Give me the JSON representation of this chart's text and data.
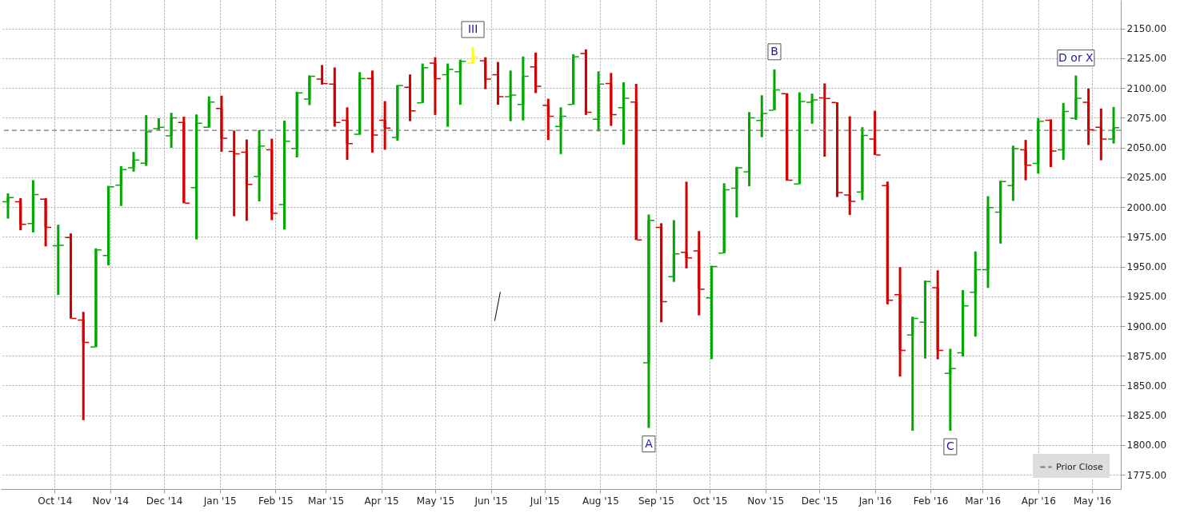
{
  "chart_data": {
    "type": "candlestick",
    "x": [
      "2014-09-05",
      "2014-09-12",
      "2014-09-19",
      "2014-09-26",
      "2014-10-03",
      "2014-10-10",
      "2014-10-17",
      "2014-10-24",
      "2014-10-31",
      "2014-11-07",
      "2014-11-14",
      "2014-11-21",
      "2014-11-28",
      "2014-12-05",
      "2014-12-12",
      "2014-12-19",
      "2014-12-26",
      "2015-01-02",
      "2015-01-09",
      "2015-01-16",
      "2015-01-23",
      "2015-01-30",
      "2015-02-06",
      "2015-02-13",
      "2015-02-20",
      "2015-02-27",
      "2015-03-06",
      "2015-03-13",
      "2015-03-20",
      "2015-03-27",
      "2015-04-03",
      "2015-04-10",
      "2015-04-17",
      "2015-04-24",
      "2015-05-01",
      "2015-05-08",
      "2015-05-15",
      "2015-05-22",
      "2015-05-29",
      "2015-06-05",
      "2015-06-12",
      "2015-06-19",
      "2015-06-26",
      "2015-07-03",
      "2015-07-10",
      "2015-07-17",
      "2015-07-24",
      "2015-07-31",
      "2015-08-07",
      "2015-08-14",
      "2015-08-21",
      "2015-08-28",
      "2015-09-04",
      "2015-09-11",
      "2015-09-18",
      "2015-09-25",
      "2015-10-02",
      "2015-10-09",
      "2015-10-16",
      "2015-10-23",
      "2015-10-30",
      "2015-11-06",
      "2015-11-13",
      "2015-11-20",
      "2015-11-27",
      "2015-12-04",
      "2015-12-11",
      "2015-12-18",
      "2015-12-25",
      "2016-01-01",
      "2016-01-08",
      "2016-01-15",
      "2016-01-22",
      "2016-01-29",
      "2016-02-05",
      "2016-02-12",
      "2016-02-19",
      "2016-02-26",
      "2016-03-04",
      "2016-03-11",
      "2016-03-18",
      "2016-03-25",
      "2016-04-01",
      "2016-04-08",
      "2016-04-15",
      "2016-04-22",
      "2016-04-29",
      "2016-05-06",
      "2016-05-13"
    ],
    "ohlc": [
      [
        2004.4,
        2011.4,
        1990.3,
        2007.9
      ],
      [
        2004.4,
        2007.5,
        1980.5,
        1985.5
      ],
      [
        1986.2,
        2022.6,
        1978.7,
        2010.5
      ],
      [
        2006.6,
        2007.5,
        1966.9,
        1982.9
      ],
      [
        1967.5,
        1985.1,
        1926.1,
        1967.8
      ],
      [
        1974.3,
        1977.8,
        1906.4,
        1906.4
      ],
      [
        1905.1,
        1911.9,
        1820.9,
        1886.2
      ],
      [
        1882.3,
        1965.3,
        1882.3,
        1963.9
      ],
      [
        1959.3,
        2017.8,
        1950.9,
        2017.1
      ],
      [
        2018.4,
        2034.4,
        2000.9,
        2031.4
      ],
      [
        2032.9,
        2046.3,
        2029.8,
        2039.5
      ],
      [
        2036.8,
        2077.2,
        2034.6,
        2063.2
      ],
      [
        2065.8,
        2074.6,
        2064.7,
        2067.1
      ],
      [
        2059.9,
        2079.2,
        2049.8,
        2075.0
      ],
      [
        2071.1,
        2075.9,
        2003.3,
        2003.3
      ],
      [
        2016.4,
        2077.8,
        1972.8,
        2070.4
      ],
      [
        2067.1,
        2093.0,
        2066.7,
        2088.2
      ],
      [
        2082.9,
        2093.6,
        2046.5,
        2057.9
      ],
      [
        2046.7,
        2064.3,
        1992.3,
        2044.7
      ],
      [
        2046.1,
        2056.8,
        1988.4,
        2019.1
      ],
      [
        2025.7,
        2064.7,
        2004.8,
        2051.3
      ],
      [
        2048.0,
        2057.4,
        1989.0,
        1994.7
      ],
      [
        2002.0,
        2072.6,
        1981.1,
        2055.3
      ],
      [
        2049.3,
        2096.9,
        2041.7,
        2096.0
      ],
      [
        2090.8,
        2110.7,
        2085.7,
        2109.9
      ],
      [
        2107.5,
        2119.3,
        2102.8,
        2103.9
      ],
      [
        2103.3,
        2117.3,
        2067.5,
        2071.1
      ],
      [
        2073.0,
        2083.8,
        2039.7,
        2053.3
      ],
      [
        2061.2,
        2113.4,
        2060.7,
        2108.1
      ],
      [
        2108.1,
        2114.7,
        2045.8,
        2060.5
      ],
      [
        2073.0,
        2089.0,
        2048.2,
        2066.4
      ],
      [
        2058.5,
        2102.6,
        2055.7,
        2102.2
      ],
      [
        2100.6,
        2111.4,
        2072.2,
        2080.9
      ],
      [
        2087.5,
        2120.6,
        2087.5,
        2117.1
      ],
      [
        2121.0,
        2125.9,
        2077.4,
        2107.9
      ],
      [
        2111.2,
        2120.6,
        2067.5,
        2115.8
      ],
      [
        2113.8,
        2123.9,
        2086.0,
        2122.4
      ],
      [
        2121.0,
        2134.4,
        2120.4,
        2125.9
      ],
      [
        2123.0,
        2125.9,
        2099.1,
        2107.5
      ],
      [
        2111.2,
        2121.9,
        2086.0,
        2092.8
      ],
      [
        2092.8,
        2114.7,
        2072.2,
        2094.1
      ],
      [
        2086.2,
        2126.5,
        2072.8,
        2109.9
      ],
      [
        2117.8,
        2129.8,
        2095.8,
        2101.5
      ],
      [
        2085.5,
        2091.0,
        2056.4,
        2076.3
      ],
      [
        2067.8,
        2083.8,
        2044.5,
        2076.3
      ],
      [
        2086.2,
        2128.5,
        2086.2,
        2126.3
      ],
      [
        2129.0,
        2132.5,
        2077.4,
        2079.6
      ],
      [
        2073.7,
        2114.0,
        2063.6,
        2103.3
      ],
      [
        2103.9,
        2112.7,
        2068.2,
        2077.6
      ],
      [
        2083.5,
        2104.8,
        2052.4,
        2091.4
      ],
      [
        2088.2,
        2103.5,
        1972.4,
        1972.4
      ],
      [
        1869.1,
        1993.6,
        1814.3,
        1988.8
      ],
      [
        1982.9,
        1986.4,
        1903.1,
        1920.4
      ],
      [
        1941.5,
        1989.0,
        1937.1,
        1960.6
      ],
      [
        1961.9,
        2021.3,
        1948.5,
        1957.3
      ],
      [
        1963.2,
        1979.8,
        1909.0,
        1930.9
      ],
      [
        1923.7,
        1950.7,
        1872.2,
        1950.0
      ],
      [
        1961.2,
        2020.0,
        1961.2,
        2014.5
      ],
      [
        2015.8,
        2033.8,
        1991.2,
        2032.9
      ],
      [
        2029.6,
        2079.8,
        2017.5,
        2075.0
      ],
      [
        2072.8,
        2093.9,
        2058.7,
        2078.7
      ],
      [
        2081.4,
        2115.7,
        2081.4,
        2098.4
      ],
      [
        2095.3,
        2095.7,
        2022.1,
        2022.5
      ],
      [
        2019.3,
        2096.4,
        2019.3,
        2088.7
      ],
      [
        2088.0,
        2095.3,
        2070.0,
        2090.0
      ],
      [
        2091.8,
        2103.9,
        2042.3,
        2091.2
      ],
      [
        2087.8,
        2088.0,
        2008.4,
        2012.1
      ],
      [
        2010.2,
        2076.2,
        1993.4,
        2004.8
      ],
      [
        2012.7,
        2067.1,
        2005.9,
        2060.2
      ],
      [
        2057.1,
        2080.9,
        2043.7,
        2043.7
      ],
      [
        2018.0,
        2021.4,
        1918.2,
        1921.6
      ],
      [
        1926.4,
        1949.5,
        1857.5,
        1879.5
      ],
      [
        1892.5,
        1907.9,
        1812.0,
        1906.4
      ],
      [
        1903.2,
        1938.2,
        1872.7,
        1937.5
      ],
      [
        1932.3,
        1946.8,
        1872.0,
        1879.5
      ],
      [
        1860.2,
        1880.9,
        1812.0,
        1864.3
      ],
      [
        1877.5,
        1930.2,
        1874.5,
        1917.0
      ],
      [
        1928.4,
        1962.7,
        1891.1,
        1947.3
      ],
      [
        1947.3,
        2009.1,
        1932.0,
        1999.6
      ],
      [
        1995.7,
        2022.1,
        1969.3,
        2021.4
      ],
      [
        2018.0,
        2051.6,
        2005.2,
        2049.1
      ],
      [
        2048.0,
        2056.4,
        2022.5,
        2035.2
      ],
      [
        2036.6,
        2074.8,
        2028.2,
        2072.1
      ],
      [
        2073.0,
        2073.7,
        2033.6,
        2047.1
      ],
      [
        2048.0,
        2087.5,
        2039.6,
        2080.3
      ],
      [
        2074.6,
        2110.5,
        2073.2,
        2091.4
      ],
      [
        2088.0,
        2099.6,
        2052.1,
        2064.8
      ],
      [
        2067.1,
        2082.8,
        2039.3,
        2057.1
      ],
      [
        2057.1,
        2084.1,
        2053.4,
        2066.8
      ]
    ],
    "colors": [
      "#00a800",
      "#d40000",
      "#00a800",
      "#d40000",
      "#00a800",
      "#d40000",
      "#d40000",
      "#00a800",
      "#00a800",
      "#00a800",
      "#00a800",
      "#00a800",
      "#00a800",
      "#00a800",
      "#d40000",
      "#00a800",
      "#00a800",
      "#d40000",
      "#d40000",
      "#d40000",
      "#00a800",
      "#d40000",
      "#00a800",
      "#00a800",
      "#00a800",
      "#d40000",
      "#d40000",
      "#d40000",
      "#00a800",
      "#d40000",
      "#d40000",
      "#00a800",
      "#d40000",
      "#00a800",
      "#d40000",
      "#00a800",
      "#00a800",
      "#ffff00",
      "#d40000",
      "#d40000",
      "#00a800",
      "#00a800",
      "#d40000",
      "#d40000",
      "#00a800",
      "#00a800",
      "#d40000",
      "#00a800",
      "#d40000",
      "#00a800",
      "#d40000",
      "#00a800",
      "#d40000",
      "#00a800",
      "#d40000",
      "#d40000",
      "#00a800",
      "#00a800",
      "#00a800",
      "#00a800",
      "#00a800",
      "#00a800",
      "#d40000",
      "#00a800",
      "#00a800",
      "#d40000",
      "#d40000",
      "#d40000",
      "#00a800",
      "#d40000",
      "#d40000",
      "#d40000",
      "#00a800",
      "#00a800",
      "#d40000",
      "#00a800",
      "#00a800",
      "#00a800",
      "#00a800",
      "#00a800",
      "#00a800",
      "#d40000",
      "#00a800",
      "#d40000",
      "#00a800",
      "#00a800",
      "#d40000",
      "#d40000",
      "#00a800"
    ],
    "xlim": [
      "2014-09-01",
      "2016-05-17"
    ],
    "xticks": [
      {
        "value": "2014-10-01",
        "label": "Oct '14"
      },
      {
        "value": "2014-11-01",
        "label": "Nov '14"
      },
      {
        "value": "2014-12-01",
        "label": "Dec '14"
      },
      {
        "value": "2015-01-01",
        "label": "Jan '15"
      },
      {
        "value": "2015-02-01",
        "label": "Feb '15"
      },
      {
        "value": "2015-03-01",
        "label": "Mar '15"
      },
      {
        "value": "2015-04-01",
        "label": "Apr '15"
      },
      {
        "value": "2015-05-01",
        "label": "May '15"
      },
      {
        "value": "2015-06-01",
        "label": "Jun '15"
      },
      {
        "value": "2015-07-01",
        "label": "Jul '15"
      },
      {
        "value": "2015-08-01",
        "label": "Aug '15"
      },
      {
        "value": "2015-09-01",
        "label": "Sep '15"
      },
      {
        "value": "2015-10-01",
        "label": "Oct '15"
      },
      {
        "value": "2015-11-01",
        "label": "Nov '15"
      },
      {
        "value": "2015-12-01",
        "label": "Dec '15"
      },
      {
        "value": "2016-01-01",
        "label": "Jan '16"
      },
      {
        "value": "2016-02-01",
        "label": "Feb '16"
      },
      {
        "value": "2016-03-01",
        "label": "Mar '16"
      },
      {
        "value": "2016-04-01",
        "label": "Apr '16"
      },
      {
        "value": "2016-05-01",
        "label": "May '16"
      }
    ],
    "ylim": [
      1763,
      2174
    ],
    "yticks": [
      {
        "value": 1775,
        "label": "1775.00"
      },
      {
        "value": 1800,
        "label": "1800.00"
      },
      {
        "value": 1825,
        "label": "1825.00"
      },
      {
        "value": 1850,
        "label": "1850.00"
      },
      {
        "value": 1875,
        "label": "1875.00"
      },
      {
        "value": 1900,
        "label": "1900.00"
      },
      {
        "value": 1925,
        "label": "1925.00"
      },
      {
        "value": 1950,
        "label": "1950.00"
      },
      {
        "value": 1975,
        "label": "1975.00"
      },
      {
        "value": 2000,
        "label": "2000.00"
      },
      {
        "value": 2025,
        "label": "2025.00"
      },
      {
        "value": 2050,
        "label": "2050.00"
      },
      {
        "value": 2075,
        "label": "2075.00"
      },
      {
        "value": 2100,
        "label": "2100.00"
      },
      {
        "value": 2125,
        "label": "2125.00"
      },
      {
        "value": 2150,
        "label": "2150.00"
      }
    ],
    "ref_lines": [
      {
        "axis": "y",
        "value": 2064.5,
        "label": "Prior Close",
        "color": "#777777",
        "line_style": "dashed"
      }
    ],
    "annotations": [
      {
        "text": "III",
        "x": "2015-05-22",
        "y": 2134.4
      },
      {
        "text": "A",
        "x": "2015-08-28",
        "y": 1814.3
      },
      {
        "text": "B",
        "x": "2015-11-06",
        "y": 2115.7
      },
      {
        "text": "C",
        "x": "2016-02-12",
        "y": 1812.0
      },
      {
        "text": "D or X",
        "x": "2016-04-22",
        "y": 2110.5
      }
    ],
    "grid": true,
    "legend": "bottom right"
  }
}
